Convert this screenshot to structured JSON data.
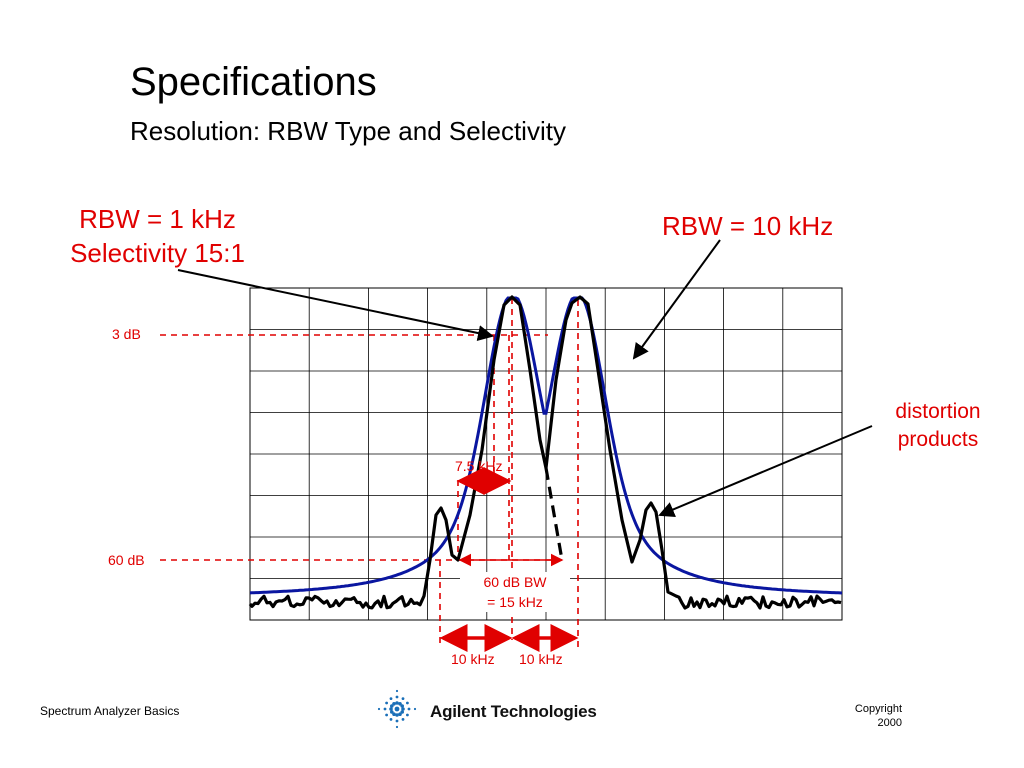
{
  "slide": {
    "title": "Specifications",
    "subtitle": "Resolution: RBW Type and Selectivity"
  },
  "annotations": {
    "rbw_narrow_line1": "RBW = 1 kHz",
    "rbw_narrow_line2": "Selectivity 15:1",
    "rbw_wide": "RBW = 10 kHz",
    "distortion_line1": "distortion",
    "distortion_line2": "products",
    "level_3db": "3 dB",
    "level_60db": "60 dB",
    "bw_3db": "7.5 kHz",
    "bw_60db_line1": "60 dB BW",
    "bw_60db_line2": "= 15 kHz",
    "spacing_left": "10 kHz",
    "spacing_right": "10 kHz"
  },
  "footer": {
    "left": "Spectrum Analyzer Basics",
    "brand": "Agilent Technologies",
    "copyright_line1": "Copyright",
    "copyright_line2": "2000"
  },
  "colors": {
    "wide_filter": "#0a16a0",
    "narrow_filter": "#000000",
    "annotation": "#e00000",
    "grid": "#000000"
  }
}
